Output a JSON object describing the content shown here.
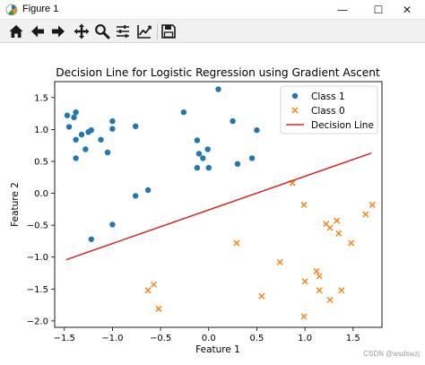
{
  "window": {
    "title": "Figure 1",
    "minimize_symbol": "—",
    "maximize_symbol": "☐",
    "close_symbol": "✕",
    "icon": "matplotlib-icon"
  },
  "toolbar": {
    "tools": [
      "home-icon",
      "back-arrow-icon",
      "forward-arrow-icon",
      "pan-icon",
      "zoom-icon",
      "configure-subplots-icon",
      "edit-axis-icon",
      "save-icon"
    ]
  },
  "watermark": "CSDN @wsdswzj",
  "colors": {
    "class1": "#1f77b4",
    "class0": "#ff7f0e",
    "line": "#d62728"
  },
  "chart_data": {
    "type": "scatter",
    "title": "Decision Line for Logistic Regression using Gradient Ascent",
    "xlabel": "Feature 1",
    "ylabel": "Feature 2",
    "xlim": [
      -1.6,
      1.8
    ],
    "ylim": [
      -2.1,
      1.75
    ],
    "xticks": [
      -1.5,
      -1.0,
      -0.5,
      0.0,
      0.5,
      1.0,
      1.5
    ],
    "xtick_labels": [
      "−1.5",
      "−1.0",
      "−0.5",
      "0.0",
      "0.5",
      "1.0",
      "1.5"
    ],
    "yticks": [
      1.5,
      1.0,
      0.5,
      0.0,
      -0.5,
      -1.0,
      -1.5,
      -2.0
    ],
    "ytick_labels": [
      "1.5",
      "1.0",
      "0.5",
      "0.0",
      "−0.5",
      "−1.0",
      "−1.5",
      "−2.0"
    ],
    "legend_position": "upper-right",
    "series": [
      {
        "name": "Class 1",
        "marker": "circle",
        "points": [
          [
            -1.47,
            1.22
          ],
          [
            -1.45,
            1.04
          ],
          [
            -1.38,
            1.27
          ],
          [
            -1.4,
            1.19
          ],
          [
            -1.38,
            0.84
          ],
          [
            -1.32,
            0.92
          ],
          [
            -1.25,
            0.96
          ],
          [
            -1.28,
            0.69
          ],
          [
            -1.38,
            0.55
          ],
          [
            -1.22,
            0.99
          ],
          [
            -1.12,
            0.84
          ],
          [
            -1.05,
            0.64
          ],
          [
            -1.0,
            1.13
          ],
          [
            -1.0,
            1.01
          ],
          [
            -1.22,
            -0.72
          ],
          [
            -1.0,
            -0.49
          ],
          [
            -0.76,
            1.05
          ],
          [
            -0.76,
            -0.04
          ],
          [
            -0.63,
            0.05
          ],
          [
            -0.26,
            1.27
          ],
          [
            -0.12,
            0.83
          ],
          [
            -0.1,
            0.62
          ],
          [
            -0.06,
            0.55
          ],
          [
            -0.01,
            0.69
          ],
          [
            -0.12,
            0.4
          ],
          [
            0.0,
            0.4
          ],
          [
            0.1,
            1.63
          ],
          [
            0.25,
            1.13
          ],
          [
            0.3,
            0.46
          ],
          [
            0.45,
            0.55
          ],
          [
            0.5,
            0.99
          ]
        ]
      },
      {
        "name": "Class 0",
        "marker": "x",
        "points": [
          [
            0.87,
            0.16
          ],
          [
            0.99,
            -0.18
          ],
          [
            1.22,
            -0.48
          ],
          [
            1.33,
            -0.43
          ],
          [
            1.35,
            -0.63
          ],
          [
            1.26,
            -0.54
          ],
          [
            1.48,
            -0.78
          ],
          [
            1.63,
            -0.33
          ],
          [
            1.7,
            -0.18
          ],
          [
            0.29,
            -0.78
          ],
          [
            0.74,
            -1.08
          ],
          [
            1.12,
            -1.22
          ],
          [
            1.15,
            -1.3
          ],
          [
            1.0,
            -1.38
          ],
          [
            1.15,
            -1.52
          ],
          [
            1.26,
            -1.67
          ],
          [
            1.38,
            -1.52
          ],
          [
            0.55,
            -1.61
          ],
          [
            0.99,
            -1.93
          ],
          [
            -0.63,
            -1.52
          ],
          [
            -0.57,
            -1.43
          ],
          [
            -0.52,
            -1.81
          ]
        ]
      },
      {
        "name": "Decision Line",
        "type": "line",
        "x": [
          -1.48,
          1.69
        ],
        "y": [
          -1.04,
          0.63
        ]
      }
    ]
  }
}
